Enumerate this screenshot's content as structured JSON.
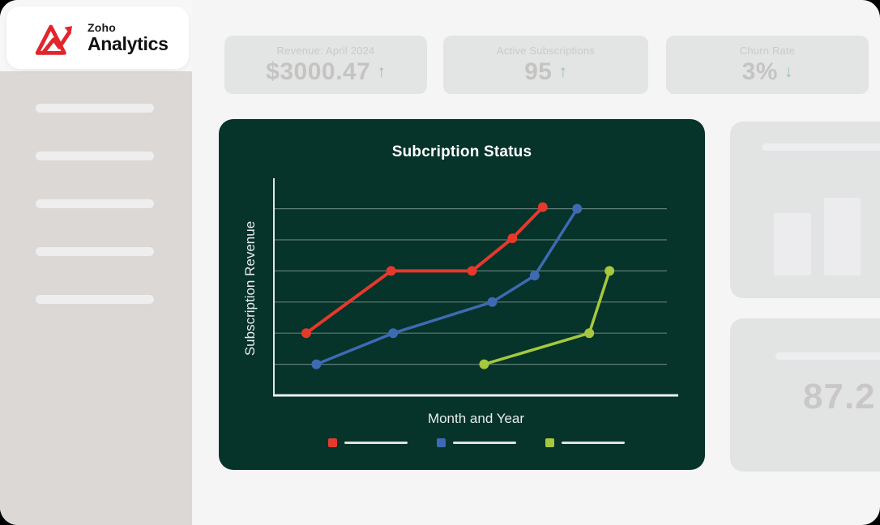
{
  "sidebar": {
    "logo": {
      "brand_top": "Zoho",
      "brand_bottom": "Analytics"
    },
    "nav_placeholder_count": 5
  },
  "icons": {
    "up": "↑",
    "down": "↓"
  },
  "stats": [
    {
      "label": "Revenue: April 2024",
      "value": "$3000.47",
      "trend": "up"
    },
    {
      "label": "Active Subscriptions",
      "value": "95",
      "trend": "up"
    },
    {
      "label": "Churn Rate",
      "value": "3%",
      "trend": "down"
    }
  ],
  "chart_data": {
    "type": "line",
    "title": "Subcription Status",
    "xlabel": "Month and Year",
    "ylabel": "Subscription Revenue",
    "x_range": [
      0,
      10
    ],
    "y_range": [
      0,
      7
    ],
    "y_gridlines": [
      1,
      2,
      3,
      4,
      5,
      6
    ],
    "tick_labels": "none",
    "grid": "horizontal-only",
    "legend_position": "bottom",
    "legend_labels": "placeholder-lines",
    "series": [
      {
        "name": "red",
        "color": "#e5392c",
        "points": [
          [
            0.8,
            2
          ],
          [
            2.9,
            4
          ],
          [
            4.9,
            4
          ],
          [
            5.9,
            5.05
          ],
          [
            6.65,
            6.05
          ]
        ]
      },
      {
        "name": "blue",
        "color": "#3e6ab3",
        "points": [
          [
            1.05,
            1
          ],
          [
            2.95,
            2
          ],
          [
            5.4,
            3
          ],
          [
            6.45,
            3.85
          ],
          [
            7.5,
            6
          ]
        ]
      },
      {
        "name": "green",
        "color": "#a5c83e",
        "points": [
          [
            5.2,
            1
          ],
          [
            7.8,
            2
          ],
          [
            8.3,
            4
          ]
        ]
      }
    ]
  },
  "right_panel": {
    "metric_value": "87.2"
  },
  "colors": {
    "chart_bg": "#06332a",
    "axis": "#e9edec",
    "gridline": "#dfe8e3",
    "trend_green": "#95c5a7",
    "logo_red": "#e0262c",
    "sidebar_bg": "#dbd8d6",
    "card_bg": "#e3e4e4"
  }
}
